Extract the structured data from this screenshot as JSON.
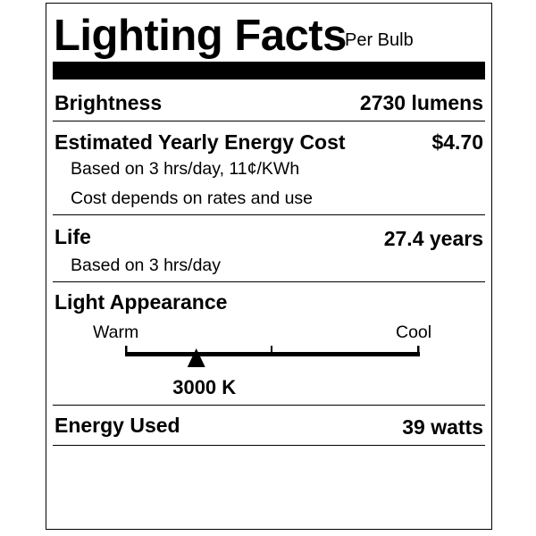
{
  "title": "Lighting Facts",
  "subtitle": "Per Bulb",
  "brightness": {
    "label": "Brightness",
    "value": "2730 lumens"
  },
  "cost": {
    "label": "Estimated Yearly Energy Cost",
    "value": "$4.70",
    "note1": "Based on 3 hrs/day, 11¢/KWh",
    "note2": "Cost depends on rates and use"
  },
  "life": {
    "label": "Life",
    "value": "27.4 years",
    "note": "Based on 3 hrs/day"
  },
  "appearance": {
    "label": "Light Appearance",
    "warm_label": "Warm",
    "cool_label": "Cool",
    "value": "3000 K",
    "marker_position_fraction": 0.24
  },
  "energy": {
    "label": "Energy Used",
    "value": "39 watts"
  }
}
